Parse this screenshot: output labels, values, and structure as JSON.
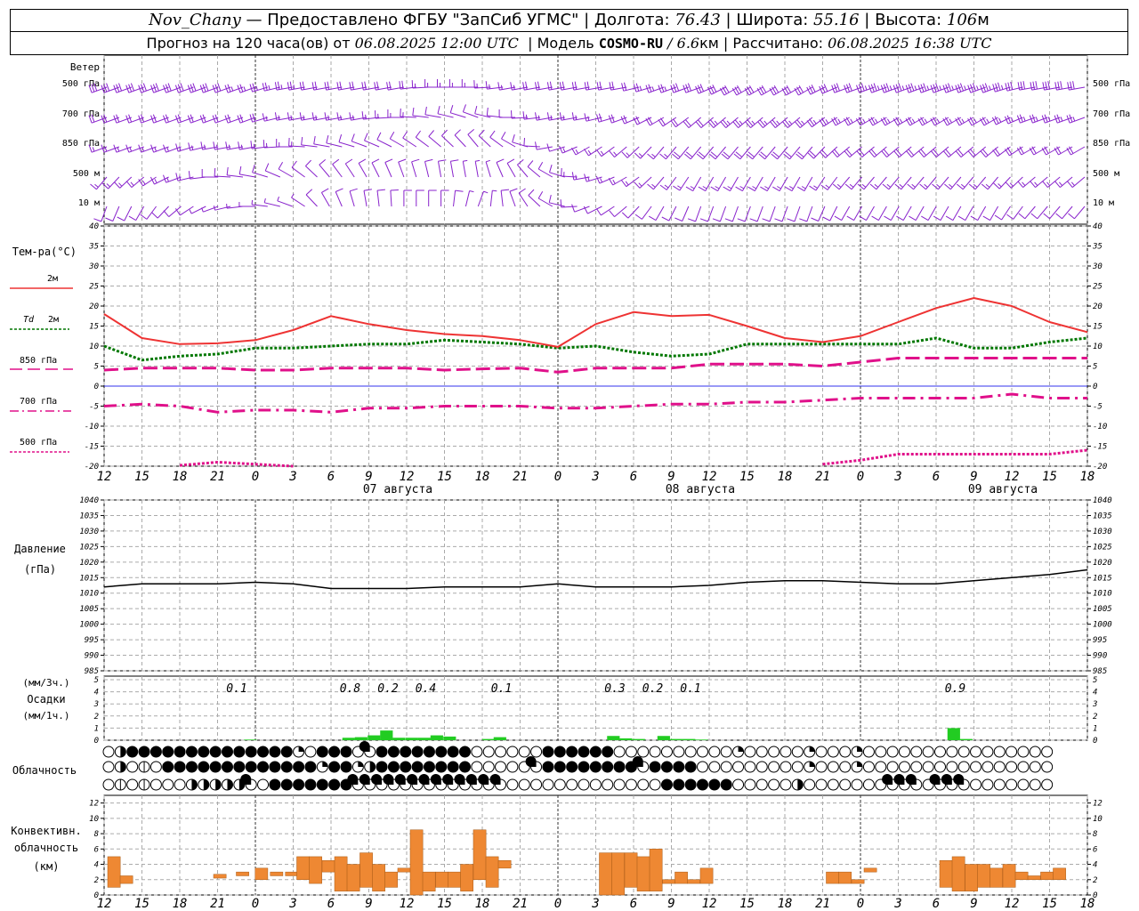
{
  "header": {
    "station": "Nov_Chany",
    "source": "Предоставлено ФГБУ \"ЗапСиб УГМС\"",
    "lon_label": "Долгота:",
    "lon": "76.43",
    "lat_label": "Широта:",
    "lat": "55.16",
    "alt_label": "Высота:",
    "alt": "106",
    "alt_unit": "м",
    "forecast_prefix": "Прогноз на 120 часа(ов) от",
    "forecast_time": "06.08.2025 12:00 UTC",
    "model_label": "Модель",
    "model": "COSMO-RU",
    "model_res": "/ 6.6",
    "model_res_unit": "км",
    "calc_label": "Рассчитано:",
    "calc_time": "06.08.2025 16:38 UTC"
  },
  "labels": {
    "wind": "Ветер",
    "wind_levels": [
      "500 гПа",
      "700 гПа",
      "850 гПа",
      "500 м",
      "10  м"
    ],
    "temp": "Тем-ра(°C)",
    "t2m": "2м",
    "td_a": "Td",
    "td_b": "2м",
    "t850": "850 гПа",
    "t700": "700 гПа",
    "t500": "500 гПа",
    "pressure_a": "Давление",
    "pressure_b": "(гПа)",
    "precip_a": "(мм/3ч.)",
    "precip_b": "Осадки",
    "precip_c": "(мм/1ч.)",
    "cloud": "Облачность",
    "conv_a": "Конвективн.",
    "conv_b": "облачность",
    "conv_c": "(км)"
  },
  "colors": {
    "t2m": "#ee3333",
    "td": "#007700",
    "t850": "#e0108a",
    "wind": "#8822cc",
    "precip": "#22cc22",
    "conv": "#ee8833",
    "grid": "#aaaaaa",
    "zero": "#3333ee"
  },
  "chart_data": {
    "x_hours": [
      12,
      15,
      18,
      21,
      0,
      3,
      6,
      9,
      12,
      15,
      18,
      21,
      0,
      3,
      6,
      9,
      12,
      15,
      18,
      21,
      0,
      3,
      6,
      9,
      12,
      15,
      18
    ],
    "day_labels": [
      {
        "index": 8,
        "text": "07 августа"
      },
      {
        "index": 16,
        "text": "08 августа"
      },
      {
        "index": 24,
        "text": "09 августа"
      }
    ],
    "temperature": {
      "type": "line",
      "ylim": [
        -20,
        40
      ],
      "yticks": [
        -20,
        -15,
        -10,
        -5,
        0,
        5,
        10,
        15,
        20,
        25,
        30,
        35,
        40
      ],
      "t2m": [
        18,
        12,
        10.5,
        10.7,
        11.5,
        14,
        17.5,
        15.5,
        14,
        13,
        12.5,
        11.5,
        9.8,
        15.5,
        18.5,
        17.5,
        17.8,
        15,
        12,
        11,
        12.5,
        16,
        19.5,
        22,
        20,
        16,
        13.5
      ],
      "td2m": [
        10,
        6.5,
        7.5,
        8,
        9.5,
        9.5,
        10,
        10.5,
        10.5,
        11.5,
        11,
        10.5,
        9.5,
        10,
        8.5,
        7.5,
        8,
        10.5,
        10.5,
        10.5,
        10.5,
        10.5,
        12,
        9.5,
        9.5,
        11,
        12
      ],
      "t850": [
        4,
        4.5,
        4.5,
        4.5,
        4,
        4,
        4.5,
        4.5,
        4.5,
        4,
        4.3,
        4.5,
        3.5,
        4.5,
        4.5,
        4.5,
        5.5,
        5.5,
        5.5,
        5,
        6,
        7,
        7,
        7,
        7,
        7,
        7
      ],
      "t700": [
        -5,
        -4.5,
        -5,
        -6.5,
        -6,
        -6,
        -6.5,
        -5.5,
        -5.5,
        -5,
        -5,
        -5,
        -5.5,
        -5.5,
        -5,
        -4.5,
        -4.5,
        -4,
        -4,
        -3.5,
        -3,
        -3,
        -3,
        -3,
        -2,
        -3,
        -3
      ],
      "t500": [
        null,
        null,
        -19.8,
        -19,
        -19.5,
        -20,
        null,
        null,
        null,
        null,
        null,
        null,
        null,
        null,
        null,
        null,
        null,
        null,
        null,
        -19.5,
        -18.5,
        -17,
        -17,
        -17,
        -17,
        -17,
        -16
      ]
    },
    "pressure": {
      "type": "line",
      "ylim": [
        985,
        1040
      ],
      "yticks": [
        985,
        990,
        995,
        1000,
        1005,
        1010,
        1015,
        1020,
        1025,
        1030,
        1035,
        1040
      ],
      "values": [
        1012,
        1013,
        1013,
        1013,
        1013.5,
        1013,
        1011.5,
        1011.5,
        1011.5,
        1012,
        1012,
        1012,
        1013,
        1012,
        1012,
        1012,
        1012.5,
        1013.5,
        1014,
        1014,
        1013.5,
        1013,
        1013,
        1014,
        1015,
        1016,
        1017.5
      ]
    },
    "precipitation": {
      "type": "bar",
      "ylim": [
        0,
        5
      ],
      "yticks": [
        0,
        1,
        2,
        3,
        4,
        5
      ],
      "sum_labels": [
        {
          "x": 4.0,
          "text": "0.1"
        },
        {
          "x": 7.0,
          "text": "0.8"
        },
        {
          "x": 8.0,
          "text": "0.2"
        },
        {
          "x": 9.0,
          "text": "0.4"
        },
        {
          "x": 11.0,
          "text": "0.1"
        },
        {
          "x": 14.0,
          "text": "0.3"
        },
        {
          "x": 15.0,
          "text": "0.2"
        },
        {
          "x": 16.0,
          "text": "0.1"
        },
        {
          "x": 23.0,
          "text": "0.9"
        }
      ],
      "bars": [
        {
          "x": 3.7,
          "v": 0.05
        },
        {
          "x": 6.3,
          "v": 0.2
        },
        {
          "x": 6.63,
          "v": 0.25
        },
        {
          "x": 6.97,
          "v": 0.4
        },
        {
          "x": 7.3,
          "v": 0.8
        },
        {
          "x": 7.63,
          "v": 0.2
        },
        {
          "x": 7.97,
          "v": 0.2
        },
        {
          "x": 8.3,
          "v": 0.2
        },
        {
          "x": 8.63,
          "v": 0.4
        },
        {
          "x": 8.97,
          "v": 0.3
        },
        {
          "x": 10.0,
          "v": 0.1
        },
        {
          "x": 10.3,
          "v": 0.25
        },
        {
          "x": 13.3,
          "v": 0.35
        },
        {
          "x": 13.63,
          "v": 0.15
        },
        {
          "x": 13.97,
          "v": 0.1
        },
        {
          "x": 14.63,
          "v": 0.35
        },
        {
          "x": 14.97,
          "v": 0.1
        },
        {
          "x": 15.3,
          "v": 0.1
        },
        {
          "x": 15.63,
          "v": 0.05
        },
        {
          "x": 22.3,
          "v": 1.0
        },
        {
          "x": 22.63,
          "v": 0.1
        }
      ]
    },
    "cloud_cover": {
      "type": "table",
      "rows_octas": [
        "04888888888888882088876888888880000008888880000000000200000200020000000000000000",
        "04000888888888888828824888888880000068888888868888000000000200020000000000000000",
        "00000004444460888888866666666666660000000000000888888000004000000066606660000000"
      ]
    },
    "convective_cloud": {
      "type": "bar",
      "ylim": [
        0,
        13
      ],
      "yticks": [
        0,
        2,
        4,
        6,
        8,
        10,
        12
      ],
      "bars": [
        {
          "x": 0.0,
          "b": 1,
          "t": 5
        },
        {
          "x": 0.33,
          "b": 1.5,
          "t": 2.5
        },
        {
          "x": 2.8,
          "b": 2.2,
          "t": 2.7
        },
        {
          "x": 3.4,
          "b": 2.5,
          "t": 3
        },
        {
          "x": 3.9,
          "b": 2,
          "t": 3.5
        },
        {
          "x": 4.3,
          "b": 2.5,
          "t": 3
        },
        {
          "x": 4.7,
          "b": 2.5,
          "t": 3
        },
        {
          "x": 5.0,
          "b": 2,
          "t": 5
        },
        {
          "x": 5.33,
          "b": 1.5,
          "t": 5
        },
        {
          "x": 5.67,
          "b": 3,
          "t": 4.5
        },
        {
          "x": 6.0,
          "b": 0.5,
          "t": 5
        },
        {
          "x": 6.33,
          "b": 0.5,
          "t": 4
        },
        {
          "x": 6.67,
          "b": 1,
          "t": 5.5
        },
        {
          "x": 7.0,
          "b": 0.5,
          "t": 4
        },
        {
          "x": 7.33,
          "b": 1,
          "t": 3
        },
        {
          "x": 7.67,
          "b": 3,
          "t": 3.5
        },
        {
          "x": 8.0,
          "b": 0,
          "t": 8.5
        },
        {
          "x": 8.33,
          "b": 0.5,
          "t": 3
        },
        {
          "x": 8.67,
          "b": 1,
          "t": 3
        },
        {
          "x": 9.0,
          "b": 1,
          "t": 3
        },
        {
          "x": 9.33,
          "b": 0.5,
          "t": 4
        },
        {
          "x": 9.67,
          "b": 2,
          "t": 8.5
        },
        {
          "x": 10.0,
          "b": 1,
          "t": 5
        },
        {
          "x": 10.33,
          "b": 3.5,
          "t": 4.5
        },
        {
          "x": 13.0,
          "b": 0,
          "t": 5.5
        },
        {
          "x": 13.33,
          "b": 0,
          "t": 5.5
        },
        {
          "x": 13.67,
          "b": 1,
          "t": 5.5
        },
        {
          "x": 14.0,
          "b": 0.5,
          "t": 5
        },
        {
          "x": 14.33,
          "b": 0.5,
          "t": 6
        },
        {
          "x": 14.67,
          "b": 1.5,
          "t": 2
        },
        {
          "x": 15.0,
          "b": 1.5,
          "t": 3
        },
        {
          "x": 15.33,
          "b": 1.5,
          "t": 2
        },
        {
          "x": 15.67,
          "b": 1.5,
          "t": 3.5
        },
        {
          "x": 19.0,
          "b": 1.5,
          "t": 3
        },
        {
          "x": 19.33,
          "b": 1.5,
          "t": 3
        },
        {
          "x": 19.67,
          "b": 1.5,
          "t": 2
        },
        {
          "x": 20.0,
          "b": 3,
          "t": 3.5
        },
        {
          "x": 22.0,
          "b": 1,
          "t": 4.5
        },
        {
          "x": 22.33,
          "b": 0.5,
          "t": 5
        },
        {
          "x": 22.67,
          "b": 0.5,
          "t": 4
        },
        {
          "x": 23.0,
          "b": 1,
          "t": 4
        },
        {
          "x": 23.33,
          "b": 1,
          "t": 3.5
        },
        {
          "x": 23.67,
          "b": 1,
          "t": 4
        },
        {
          "x": 24.0,
          "b": 2,
          "t": 3
        },
        {
          "x": 24.33,
          "b": 2,
          "t": 2.5
        },
        {
          "x": 24.67,
          "b": 2,
          "t": 3
        },
        {
          "x": 25.0,
          "b": 2,
          "t": 3.5
        }
      ]
    },
    "wind": {
      "levels": [
        "500 гПа",
        "700 гПа",
        "850 гПа",
        "500 м",
        "10  м"
      ],
      "direction_deg": [
        [
          250,
          250,
          250,
          250,
          250,
          260,
          260,
          260,
          260,
          270,
          270,
          260,
          260,
          260,
          260,
          250,
          250,
          240,
          240,
          240,
          250,
          250,
          250,
          250,
          250,
          260,
          260
        ],
        [
          250,
          250,
          250,
          250,
          250,
          260,
          260,
          260,
          270,
          280,
          290,
          270,
          260,
          260,
          250,
          240,
          230,
          230,
          230,
          230,
          240,
          240,
          240,
          240,
          240,
          250,
          250
        ],
        [
          250,
          250,
          250,
          260,
          260,
          270,
          280,
          290,
          300,
          310,
          320,
          300,
          260,
          240,
          230,
          220,
          220,
          220,
          220,
          220,
          230,
          230,
          230,
          230,
          230,
          240,
          240
        ],
        [
          220,
          230,
          250,
          270,
          280,
          300,
          320,
          330,
          340,
          350,
          350,
          330,
          300,
          260,
          240,
          220,
          210,
          210,
          210,
          210,
          220,
          220,
          220,
          220,
          220,
          230,
          230
        ],
        [
          200,
          210,
          230,
          250,
          270,
          290,
          330,
          350,
          360,
          360,
          20,
          340,
          300,
          250,
          230,
          210,
          200,
          200,
          200,
          200,
          210,
          210,
          210,
          210,
          210,
          220,
          220
        ]
      ],
      "speed_kt": [
        [
          30,
          30,
          30,
          30,
          25,
          25,
          20,
          20,
          20,
          15,
          15,
          15,
          20,
          20,
          20,
          25,
          30,
          30,
          30,
          30,
          30,
          35,
          35,
          35,
          35,
          30,
          30
        ],
        [
          20,
          20,
          20,
          20,
          20,
          15,
          15,
          15,
          15,
          10,
          10,
          10,
          15,
          15,
          20,
          20,
          20,
          25,
          25,
          25,
          25,
          25,
          25,
          25,
          25,
          25,
          25
        ],
        [
          15,
          15,
          15,
          15,
          15,
          15,
          10,
          10,
          10,
          10,
          10,
          10,
          10,
          15,
          15,
          15,
          20,
          20,
          20,
          20,
          20,
          20,
          20,
          20,
          20,
          20,
          20
        ],
        [
          15,
          15,
          15,
          10,
          10,
          10,
          10,
          10,
          10,
          10,
          5,
          10,
          10,
          15,
          15,
          15,
          15,
          15,
          15,
          15,
          15,
          15,
          15,
          15,
          15,
          15,
          15
        ],
        [
          10,
          10,
          10,
          5,
          5,
          5,
          10,
          10,
          10,
          10,
          5,
          10,
          10,
          10,
          10,
          10,
          10,
          10,
          10,
          10,
          10,
          10,
          10,
          10,
          10,
          10,
          10
        ]
      ]
    }
  }
}
